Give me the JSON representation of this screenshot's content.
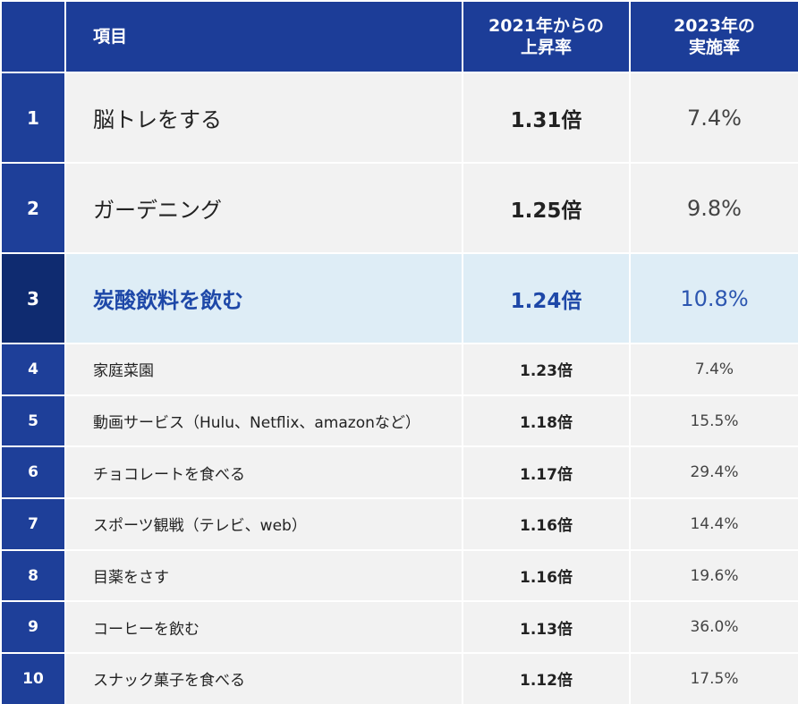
{
  "header": {
    "columns": [
      {
        "lines": [
          "項目"
        ]
      },
      {
        "lines": [
          "2021年からの",
          "上昇率"
        ]
      },
      {
        "lines": [
          "2023年の",
          "実施率"
        ]
      }
    ]
  },
  "table": {
    "rows": [
      [
        "1",
        "脳トレをする",
        "1.31倍",
        "7.4%"
      ],
      [
        "2",
        "ガーデニング",
        "1.25倍",
        "9.8%"
      ],
      [
        "3",
        "炭酸飲料を飲む",
        "1.24倍",
        "10.8%"
      ],
      [
        "4",
        "家庭菜園",
        "1.23倍",
        "7.4%"
      ],
      [
        "5",
        "動画サービス（Hulu、Netflix、amazonなど）",
        "1.18倍",
        "15.5%"
      ],
      [
        "6",
        "チョコレートを食べる",
        "1.17倍",
        "29.4%"
      ],
      [
        "7",
        "スポーツ観戦（テレビ、web）",
        "1.16倍",
        "14.4%"
      ],
      [
        "8",
        "目薬をさす",
        "1.16倍",
        "19.6%"
      ],
      [
        "9",
        "コーヒーを飲む",
        "1.13倍",
        "36.0%"
      ],
      [
        "10",
        "スナック菓子を食べる",
        "1.12倍",
        "17.5%"
      ]
    ]
  }
}
